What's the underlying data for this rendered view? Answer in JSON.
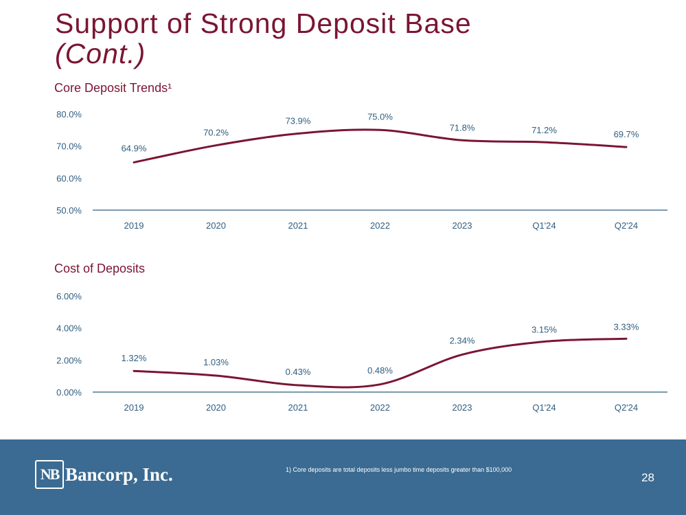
{
  "title": {
    "main": "Support of Strong Deposit Base",
    "sub": "(Cont.)"
  },
  "chart_data": [
    {
      "type": "line",
      "title": "Core Deposit Trends¹",
      "categories": [
        "2019",
        "2020",
        "2021",
        "2022",
        "2023",
        "Q1'24",
        "Q2'24"
      ],
      "values": [
        64.9,
        70.2,
        73.9,
        75.0,
        71.8,
        71.2,
        69.7
      ],
      "labels": [
        "64.9%",
        "70.2%",
        "73.9%",
        "75.0%",
        "71.8%",
        "71.2%",
        "69.7%"
      ],
      "ylim": [
        50,
        80
      ],
      "yticks": [
        50,
        60,
        70,
        80
      ],
      "ytick_labels": [
        "50.0%",
        "60.0%",
        "70.0%",
        "80.0%"
      ],
      "xlabel": "",
      "ylabel": "",
      "grid": false,
      "line_color": "#7b1533"
    },
    {
      "type": "line",
      "title": "Cost of Deposits",
      "categories": [
        "2019",
        "2020",
        "2021",
        "2022",
        "2023",
        "Q1'24",
        "Q2'24"
      ],
      "values": [
        1.32,
        1.03,
        0.43,
        0.48,
        2.34,
        3.15,
        3.33
      ],
      "labels": [
        "1.32%",
        "1.03%",
        "0.43%",
        "0.48%",
        "2.34%",
        "3.15%",
        "3.33%"
      ],
      "ylim": [
        0,
        6
      ],
      "yticks": [
        0,
        2,
        4,
        6
      ],
      "ytick_labels": [
        "0.00%",
        "2.00%",
        "4.00%",
        "6.00%"
      ],
      "xlabel": "",
      "ylabel": "",
      "grid": false,
      "line_color": "#7b1533"
    }
  ],
  "footer": {
    "logo_mark": "NB",
    "logo_text": "Bancorp, Inc.",
    "footnote": "1)     Core deposits are total deposits less jumbo time deposits greater than $100,000",
    "page_number": "28"
  },
  "colors": {
    "accent": "#7b1533",
    "axis": "#2f5d80",
    "footer_bg": "#3b6b92"
  }
}
